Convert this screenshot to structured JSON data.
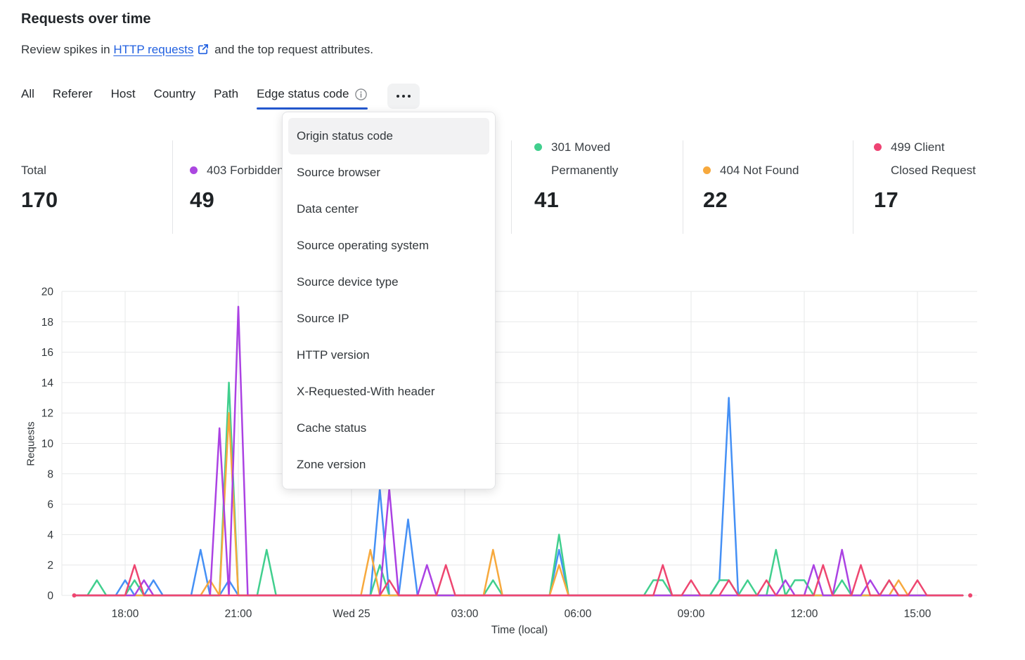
{
  "header": {
    "title": "Requests over time",
    "subtitle_prefix": "Review spikes in ",
    "link_text": "HTTP requests",
    "subtitle_suffix": " and the top request attributes."
  },
  "tabs": {
    "items": [
      {
        "label": "All",
        "active": false,
        "has_info_icon": false
      },
      {
        "label": "Referer",
        "active": false,
        "has_info_icon": false
      },
      {
        "label": "Host",
        "active": false,
        "has_info_icon": false
      },
      {
        "label": "Country",
        "active": false,
        "has_info_icon": false
      },
      {
        "label": "Path",
        "active": false,
        "has_info_icon": false
      },
      {
        "label": "Edge status code",
        "active": true,
        "has_info_icon": true
      }
    ],
    "active_underline_color": "#2458cf",
    "more_label": "more attributes"
  },
  "dropdown": {
    "items": [
      {
        "label": "Origin status code",
        "highlighted": true
      },
      {
        "label": "Source browser",
        "highlighted": false
      },
      {
        "label": "Data center",
        "highlighted": false
      },
      {
        "label": "Source operating system",
        "highlighted": false
      },
      {
        "label": "Source device type",
        "highlighted": false
      },
      {
        "label": "Source IP",
        "highlighted": false
      },
      {
        "label": "HTTP version",
        "highlighted": false
      },
      {
        "label": "X-Requested-With header",
        "highlighted": false
      },
      {
        "label": "Cache status",
        "highlighted": false
      },
      {
        "label": "Zone version",
        "highlighted": false
      }
    ]
  },
  "stats": [
    {
      "id": "total",
      "label_lines": [
        "Total"
      ],
      "value": "170",
      "dot_color": null
    },
    {
      "id": "403-forbidden",
      "label_lines": [
        "403 Forbidden"
      ],
      "value": "49",
      "dot_color": "#ab47e0"
    },
    {
      "id": "301-moved-permanently",
      "label_lines": [
        "301 Moved",
        "Permanently"
      ],
      "value": "41",
      "dot_color": "#41cf8e"
    },
    {
      "id": "404-not-found",
      "label_lines": [
        "404 Not Found"
      ],
      "value": "22",
      "dot_color": "#f7a93d"
    },
    {
      "id": "499-client-closed-request",
      "label_lines": [
        "499 Client",
        "Closed Request"
      ],
      "value": "17",
      "dot_color": "#ee4373"
    }
  ],
  "chart_data": {
    "type": "line",
    "title": "Requests over time",
    "xlabel": "Time (local)",
    "ylabel": "Requests",
    "ylim": [
      0,
      20
    ],
    "y_tick_step": 2,
    "grid": true,
    "legend_position": "stat cards above chart",
    "x_domain_hours": [
      16.65,
      40.2
    ],
    "sample_interval_hours": 0.25,
    "time_note": "x is hours since Tue 00:00 local; 24 = Wed 25 00:00; values at unlisted times are 0",
    "x_ticks": [
      {
        "t": 18,
        "label": "18:00"
      },
      {
        "t": 21,
        "label": "21:00"
      },
      {
        "t": 24,
        "label": "Wed 25"
      },
      {
        "t": 27,
        "label": "03:00"
      },
      {
        "t": 30,
        "label": "06:00"
      },
      {
        "t": 33,
        "label": "09:00"
      },
      {
        "t": 36,
        "label": "12:00"
      },
      {
        "t": 39,
        "label": "15:00"
      }
    ],
    "series": [
      {
        "id": "blue",
        "name": "(label hidden behind menu)",
        "color": "#4590f5",
        "spikes": [
          [
            18.0,
            1
          ],
          [
            18.75,
            1
          ],
          [
            20.0,
            3
          ],
          [
            20.75,
            1
          ],
          [
            24.75,
            7
          ],
          [
            25.5,
            5
          ],
          [
            29.5,
            3
          ],
          [
            33.75,
            1
          ],
          [
            34.0,
            13
          ]
        ]
      },
      {
        "id": "301",
        "name": "301 Moved Permanently",
        "color": "#41cf8e",
        "spikes": [
          [
            17.25,
            1
          ],
          [
            18.25,
            1
          ],
          [
            20.75,
            14
          ],
          [
            21.75,
            3
          ],
          [
            24.75,
            2
          ],
          [
            27.75,
            1
          ],
          [
            29.5,
            4
          ],
          [
            32.0,
            1
          ],
          [
            32.25,
            1
          ],
          [
            33.75,
            1
          ],
          [
            34.0,
            1
          ],
          [
            34.5,
            1
          ],
          [
            35.25,
            3
          ],
          [
            35.75,
            1
          ],
          [
            36.0,
            1
          ],
          [
            37.0,
            1
          ],
          [
            38.25,
            1
          ]
        ]
      },
      {
        "id": "404",
        "name": "404 Not Found",
        "color": "#f7a93d",
        "spikes": [
          [
            20.25,
            1
          ],
          [
            20.75,
            12
          ],
          [
            24.5,
            3
          ],
          [
            27.75,
            3
          ],
          [
            29.5,
            2
          ],
          [
            38.5,
            1
          ]
        ]
      },
      {
        "id": "403",
        "name": "403 Forbidden",
        "color": "#ab42e3",
        "spikes": [
          [
            18.5,
            1
          ],
          [
            20.5,
            11
          ],
          [
            21.0,
            19
          ],
          [
            25.0,
            7
          ],
          [
            26.0,
            2
          ],
          [
            35.5,
            1
          ],
          [
            36.25,
            2
          ],
          [
            37.0,
            3
          ],
          [
            37.75,
            1
          ]
        ]
      },
      {
        "id": "499",
        "name": "499 Client Closed Request",
        "color": "#ee4670",
        "spikes": [
          [
            18.25,
            2
          ],
          [
            25.0,
            1
          ],
          [
            26.5,
            2
          ],
          [
            32.25,
            2
          ],
          [
            33.0,
            1
          ],
          [
            34.0,
            1
          ],
          [
            35.0,
            1
          ],
          [
            36.5,
            2
          ],
          [
            37.5,
            2
          ],
          [
            38.25,
            1
          ],
          [
            39.0,
            1
          ]
        ],
        "end_dots": [
          16.65,
          40.4
        ]
      }
    ]
  }
}
